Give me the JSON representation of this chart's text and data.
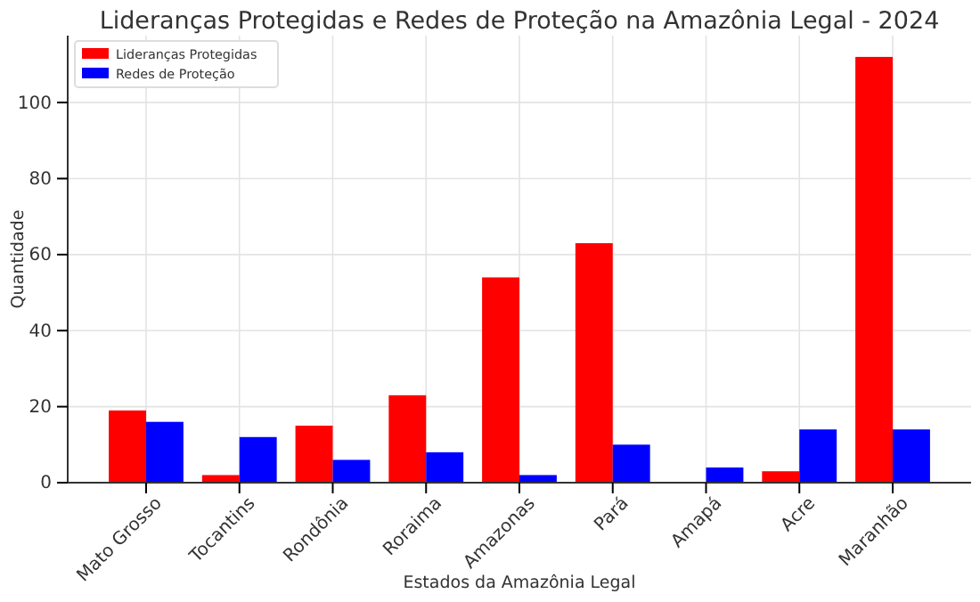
{
  "chart_data": {
    "type": "bar",
    "title": "Lideranças Protegidas e Redes de Proteção na Amazônia Legal - 2024",
    "xlabel": "Estados da Amazônia Legal",
    "ylabel": "Quantidade",
    "categories": [
      "Mato Grosso",
      "Tocantins",
      "Rondônia",
      "Roraima",
      "Amazonas",
      "Pará",
      "Amapá",
      "Acre",
      "Maranhão"
    ],
    "series": [
      {
        "name": "Lideranças Protegidas",
        "color": "#ff0000",
        "values": [
          19,
          2,
          15,
          23,
          54,
          63,
          0,
          3,
          112
        ]
      },
      {
        "name": "Redes de Proteção",
        "color": "#0000ff",
        "values": [
          16,
          12,
          6,
          8,
          2,
          10,
          4,
          14,
          14
        ]
      }
    ],
    "ylim": [
      0,
      117.6
    ],
    "yticks": [
      0,
      20,
      40,
      60,
      80,
      100
    ],
    "grid": true,
    "legend": "top left"
  }
}
